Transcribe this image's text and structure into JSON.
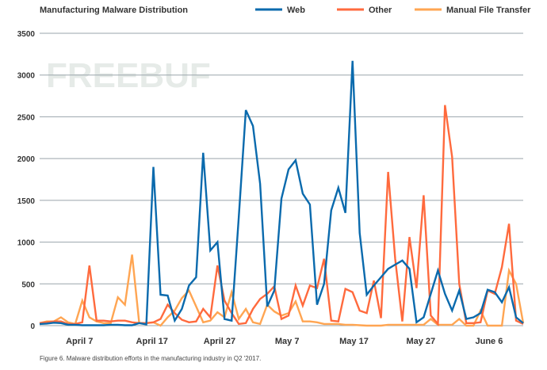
{
  "chart_data": {
    "type": "line",
    "title": "Manufacturing Malware Distribution",
    "xlabel": "",
    "ylabel": "",
    "ylim": [
      0,
      3500
    ],
    "yticks": [
      0,
      500,
      1000,
      1500,
      2000,
      2500,
      3000,
      3500
    ],
    "xlim": [
      0,
      68
    ],
    "xticks": [
      {
        "label": "April 7",
        "at": 5.6
      },
      {
        "label": "April 17",
        "at": 15.8
      },
      {
        "label": "April 27",
        "at": 25.3
      },
      {
        "label": "May 7",
        "at": 34.8
      },
      {
        "label": "May 17",
        "at": 44.2
      },
      {
        "label": "May 27",
        "at": 53.6
      },
      {
        "label": "June 6",
        "at": 63.2
      }
    ],
    "grid": true,
    "legend_position": "top-right",
    "series": [
      {
        "name": "Web",
        "color": "#0a6aad",
        "values": [
          20,
          25,
          35,
          30,
          10,
          10,
          5,
          5,
          5,
          5,
          10,
          10,
          5,
          5,
          30,
          15,
          1900,
          370,
          360,
          60,
          200,
          480,
          580,
          2070,
          900,
          1000,
          80,
          60,
          1300,
          2580,
          2390,
          1700,
          230,
          420,
          1520,
          1870,
          1980,
          1580,
          1450,
          250,
          500,
          1380,
          1650,
          1350,
          3170,
          1110,
          370,
          480,
          580,
          680,
          730,
          780,
          680,
          40,
          100,
          380,
          660,
          380,
          180,
          420,
          80,
          100,
          150,
          430,
          400,
          280,
          460,
          100,
          30
        ]
      },
      {
        "name": "Other",
        "color": "#ff6a3d",
        "values": [
          30,
          40,
          50,
          50,
          20,
          20,
          40,
          720,
          60,
          60,
          50,
          60,
          60,
          40,
          30,
          30,
          40,
          80,
          250,
          150,
          70,
          40,
          50,
          200,
          100,
          720,
          300,
          150,
          20,
          30,
          200,
          320,
          380,
          470,
          80,
          120,
          480,
          240,
          480,
          450,
          800,
          60,
          50,
          440,
          400,
          180,
          150,
          540,
          90,
          1840,
          800,
          50,
          1060,
          450,
          1560,
          120,
          20,
          2640,
          2020,
          500,
          30,
          30,
          40,
          420,
          380,
          700,
          1220,
          60,
          20
        ]
      },
      {
        "name": "Manual File Transfer",
        "color": "#ffa552",
        "values": [
          30,
          50,
          50,
          100,
          40,
          20,
          300,
          100,
          50,
          30,
          30,
          340,
          250,
          850,
          30,
          30,
          40,
          0,
          100,
          180,
          330,
          420,
          230,
          40,
          60,
          160,
          100,
          400,
          80,
          200,
          40,
          20,
          250,
          170,
          120,
          150,
          290,
          50,
          50,
          40,
          20,
          20,
          20,
          10,
          10,
          5,
          0,
          0,
          0,
          10,
          10,
          10,
          10,
          10,
          10,
          80,
          10,
          10,
          10,
          80,
          0,
          0,
          180,
          0,
          0,
          0,
          660,
          500,
          30
        ]
      }
    ]
  },
  "caption": "Figure 6. Malware distribution efforts in the manufacturing industry in Q2 '2017.",
  "watermark": "FREEBUF"
}
